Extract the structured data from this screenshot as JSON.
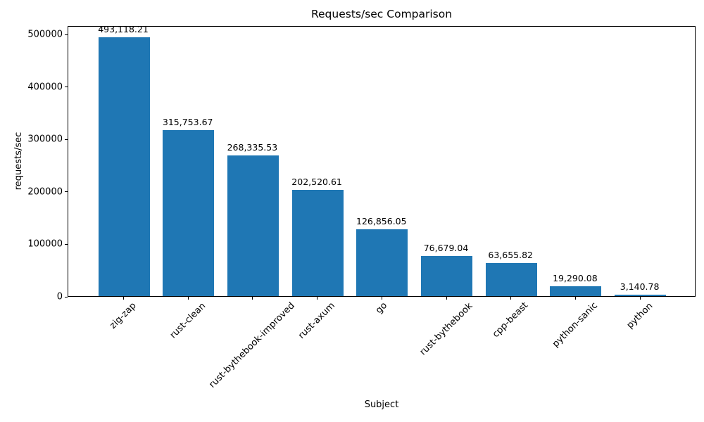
{
  "chart_data": {
    "type": "bar",
    "title": "Requests/sec Comparison",
    "xlabel": "Subject",
    "ylabel": "requests/sec",
    "categories": [
      "zig-zap",
      "rust-clean",
      "rust-bythebook-improved",
      "rust-axum",
      "go",
      "rust-bythebook",
      "cpp-beast",
      "python-sanic",
      "python"
    ],
    "values": [
      493118.21,
      315753.67,
      268335.53,
      202520.61,
      126856.05,
      76679.04,
      63655.82,
      19290.08,
      3140.78
    ],
    "value_labels": [
      "493,118.21",
      "315,753.67",
      "268,335.53",
      "202,520.61",
      "126,856.05",
      "76,679.04",
      "63,655.82",
      "19,290.08",
      "3,140.78"
    ],
    "yticks": [
      0,
      100000,
      200000,
      300000,
      400000,
      500000
    ],
    "ytick_labels": [
      "0",
      "100000",
      "200000",
      "300000",
      "400000",
      "500000"
    ],
    "ylim": [
      0,
      516000
    ],
    "xtick_rotation_deg": 45,
    "bar_color": "#1f77b4",
    "grid": false,
    "legend": null
  }
}
